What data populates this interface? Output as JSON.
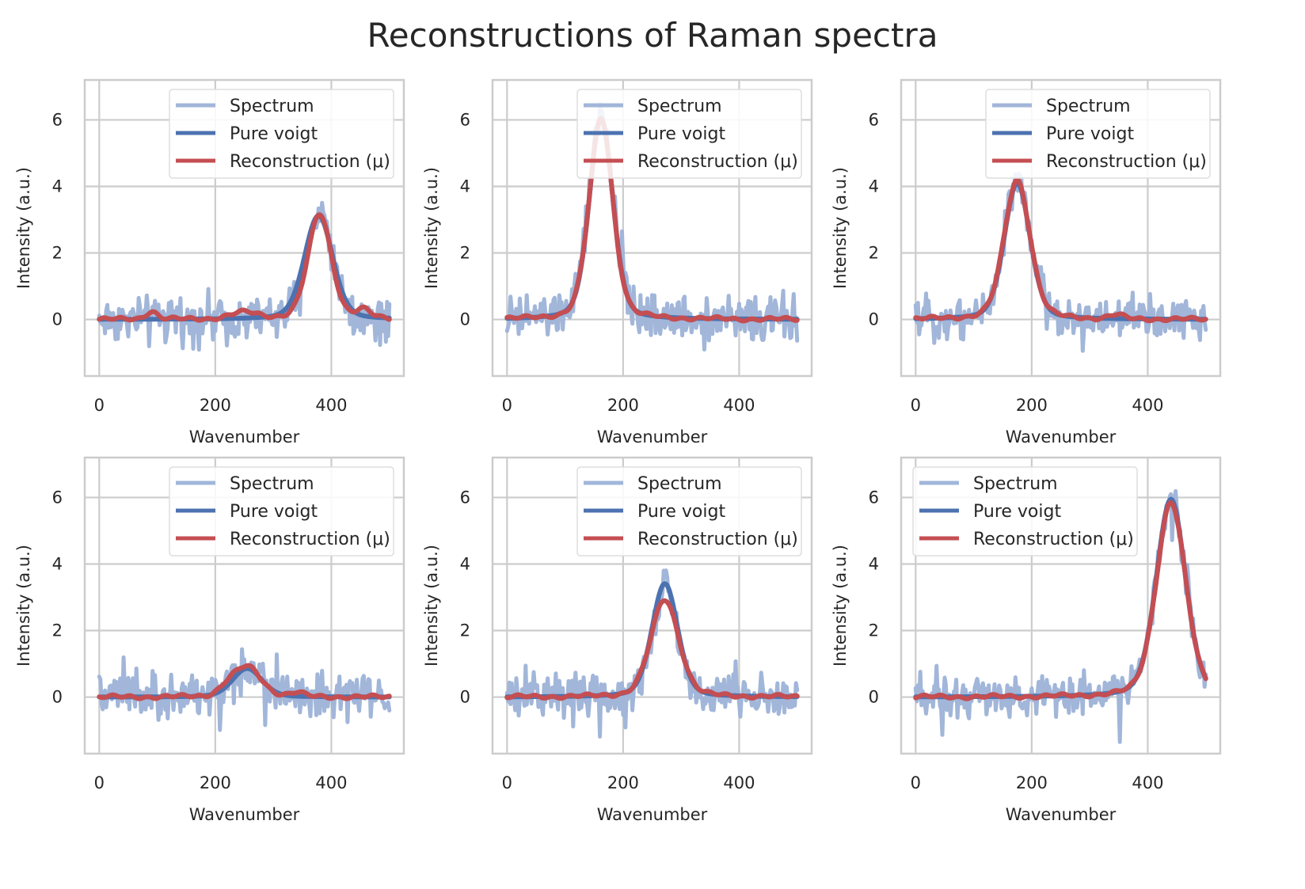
{
  "figure": {
    "title": "Reconstructions of Raman spectra"
  },
  "colors": {
    "spectrum": "#a1b6d9",
    "pure_voigt": "#4c72b0",
    "reconstruction": "#c44e52",
    "grid": "#cccccc",
    "frame": "#cccccc"
  },
  "chart_data": [
    {
      "type": "line",
      "panel": "row1-col1",
      "xlabel": "Wavenumber",
      "ylabel": "Intensity (a.u.)",
      "xlim": [
        -25,
        525
      ],
      "ylim": [
        -1.7,
        7.2
      ],
      "xticks": [
        0,
        200,
        400
      ],
      "yticks": [
        0,
        2,
        4,
        6
      ],
      "grid": true,
      "legend_position": "upper right",
      "legend": [
        "Spectrum",
        "Pure voigt",
        "Reconstruction (μ)"
      ],
      "series": [
        {
          "name": "Spectrum",
          "x_range": [
            0,
            500
          ],
          "noise_amplitude": 0.55,
          "peaks": [
            {
              "center": 380,
              "height": 3.3,
              "width": 22
            }
          ],
          "max_observed": 4.3,
          "min_observed": -1.5
        },
        {
          "name": "Pure voigt",
          "x_range": [
            0,
            500
          ],
          "peaks": [
            {
              "center": 378,
              "height": 3.2,
              "width": 24
            }
          ]
        },
        {
          "name": "Reconstruction (μ)",
          "x_range": [
            0,
            500
          ],
          "peaks": [
            {
              "center": 380,
              "height": 3.25,
              "width": 20
            },
            {
              "center": 90,
              "height": 0.25,
              "width": 10
            },
            {
              "center": 250,
              "height": 0.2,
              "width": 25
            },
            {
              "center": 455,
              "height": 0.25,
              "width": 12
            }
          ]
        }
      ]
    },
    {
      "type": "line",
      "panel": "row1-col2",
      "xlabel": "Wavenumber",
      "ylabel": "Intensity (a.u.)",
      "xlim": [
        -25,
        525
      ],
      "ylim": [
        -1.7,
        7.2
      ],
      "xticks": [
        0,
        200,
        400
      ],
      "yticks": [
        0,
        2,
        4,
        6
      ],
      "grid": true,
      "legend_position": "upper right",
      "legend": [
        "Spectrum",
        "Pure voigt",
        "Reconstruction (μ)"
      ],
      "series": [
        {
          "name": "Spectrum",
          "x_range": [
            0,
            500
          ],
          "noise_amplitude": 0.55,
          "peaks": [
            {
              "center": 162,
              "height": 6.3,
              "width": 20
            }
          ],
          "max_observed": 7.2,
          "min_observed": -1.6
        },
        {
          "name": "Pure voigt",
          "x_range": [
            0,
            500
          ],
          "peaks": [
            {
              "center": 162,
              "height": 6.2,
              "width": 20
            }
          ]
        },
        {
          "name": "Reconstruction (μ)",
          "x_range": [
            0,
            500
          ],
          "peaks": [
            {
              "center": 162,
              "height": 6.2,
              "width": 20
            }
          ]
        }
      ]
    },
    {
      "type": "line",
      "panel": "row1-col3",
      "xlabel": "Wavenumber",
      "ylabel": "Intensity (a.u.)",
      "xlim": [
        -25,
        525
      ],
      "ylim": [
        -1.7,
        7.2
      ],
      "xticks": [
        0,
        200,
        400
      ],
      "yticks": [
        0,
        2,
        4,
        6
      ],
      "grid": true,
      "legend_position": "upper right",
      "legend": [
        "Spectrum",
        "Pure voigt",
        "Reconstruction (μ)"
      ],
      "series": [
        {
          "name": "Spectrum",
          "x_range": [
            0,
            500
          ],
          "noise_amplitude": 0.5,
          "peaks": [
            {
              "center": 175,
              "height": 4.3,
              "width": 22
            }
          ],
          "max_observed": 5.3,
          "min_observed": -1.3
        },
        {
          "name": "Pure voigt",
          "x_range": [
            0,
            500
          ],
          "peaks": [
            {
              "center": 175,
              "height": 4.2,
              "width": 22
            }
          ]
        },
        {
          "name": "Reconstruction (μ)",
          "x_range": [
            0,
            500
          ],
          "peaks": [
            {
              "center": 175,
              "height": 4.3,
              "width": 22
            },
            {
              "center": 345,
              "height": 0.12,
              "width": 12
            }
          ]
        }
      ]
    },
    {
      "type": "line",
      "panel": "row2-col1",
      "xlabel": "Wavenumber",
      "ylabel": "Intensity (a.u.)",
      "xlim": [
        -25,
        525
      ],
      "ylim": [
        -1.7,
        7.2
      ],
      "xticks": [
        0,
        200,
        400
      ],
      "yticks": [
        0,
        2,
        4,
        6
      ],
      "grid": true,
      "legend_position": "upper right",
      "legend": [
        "Spectrum",
        "Pure voigt",
        "Reconstruction (μ)"
      ],
      "series": [
        {
          "name": "Spectrum",
          "x_range": [
            0,
            500
          ],
          "noise_amplitude": 0.55,
          "peaks": [
            {
              "center": 255,
              "height": 0.9,
              "width": 25
            }
          ],
          "max_observed": 2.0,
          "min_observed": -1.6
        },
        {
          "name": "Pure voigt",
          "x_range": [
            0,
            500
          ],
          "peaks": [
            {
              "center": 255,
              "height": 0.88,
              "width": 25
            }
          ]
        },
        {
          "name": "Reconstruction (μ)",
          "x_range": [
            0,
            500
          ],
          "peaks": [
            {
              "center": 255,
              "height": 0.92,
              "width": 24
            },
            {
              "center": 220,
              "height": 0.2,
              "width": 15
            },
            {
              "center": 340,
              "height": 0.12,
              "width": 12
            }
          ]
        }
      ]
    },
    {
      "type": "line",
      "panel": "row2-col2",
      "xlabel": "Wavenumber",
      "ylabel": "Intensity (a.u.)",
      "xlim": [
        -25,
        525
      ],
      "ylim": [
        -1.7,
        7.2
      ],
      "xticks": [
        0,
        200,
        400
      ],
      "yticks": [
        0,
        2,
        4,
        6
      ],
      "grid": true,
      "legend_position": "upper right",
      "legend": [
        "Spectrum",
        "Pure voigt",
        "Reconstruction (μ)"
      ],
      "series": [
        {
          "name": "Spectrum",
          "x_range": [
            0,
            500
          ],
          "noise_amplitude": 0.55,
          "peaks": [
            {
              "center": 272,
              "height": 3.4,
              "width": 22
            }
          ],
          "max_observed": 4.6,
          "min_observed": -1.6
        },
        {
          "name": "Pure voigt",
          "x_range": [
            0,
            500
          ],
          "peaks": [
            {
              "center": 272,
              "height": 3.5,
              "width": 22
            }
          ]
        },
        {
          "name": "Reconstruction (μ)",
          "x_range": [
            0,
            500
          ],
          "peaks": [
            {
              "center": 272,
              "height": 3.0,
              "width": 24
            }
          ]
        }
      ]
    },
    {
      "type": "line",
      "panel": "row2-col3",
      "xlabel": "Wavenumber",
      "ylabel": "Intensity (a.u.)",
      "xlim": [
        -25,
        525
      ],
      "ylim": [
        -1.7,
        7.2
      ],
      "xticks": [
        0,
        200,
        400
      ],
      "yticks": [
        0,
        2,
        4,
        6
      ],
      "grid": true,
      "legend_position": "upper left",
      "legend": [
        "Spectrum",
        "Pure voigt",
        "Reconstruction (μ)"
      ],
      "series": [
        {
          "name": "Spectrum",
          "x_range": [
            0,
            500
          ],
          "noise_amplitude": 0.5,
          "peaks": [
            {
              "center": 440,
              "height": 6.0,
              "width": 25
            }
          ],
          "max_observed": 6.7,
          "min_observed": -1.2
        },
        {
          "name": "Pure voigt",
          "x_range": [
            0,
            500
          ],
          "peaks": [
            {
              "center": 440,
              "height": 6.1,
              "width": 25
            }
          ]
        },
        {
          "name": "Reconstruction (μ)",
          "x_range": [
            0,
            500
          ],
          "peaks": [
            {
              "center": 440,
              "height": 6.0,
              "width": 25
            }
          ]
        }
      ]
    }
  ]
}
